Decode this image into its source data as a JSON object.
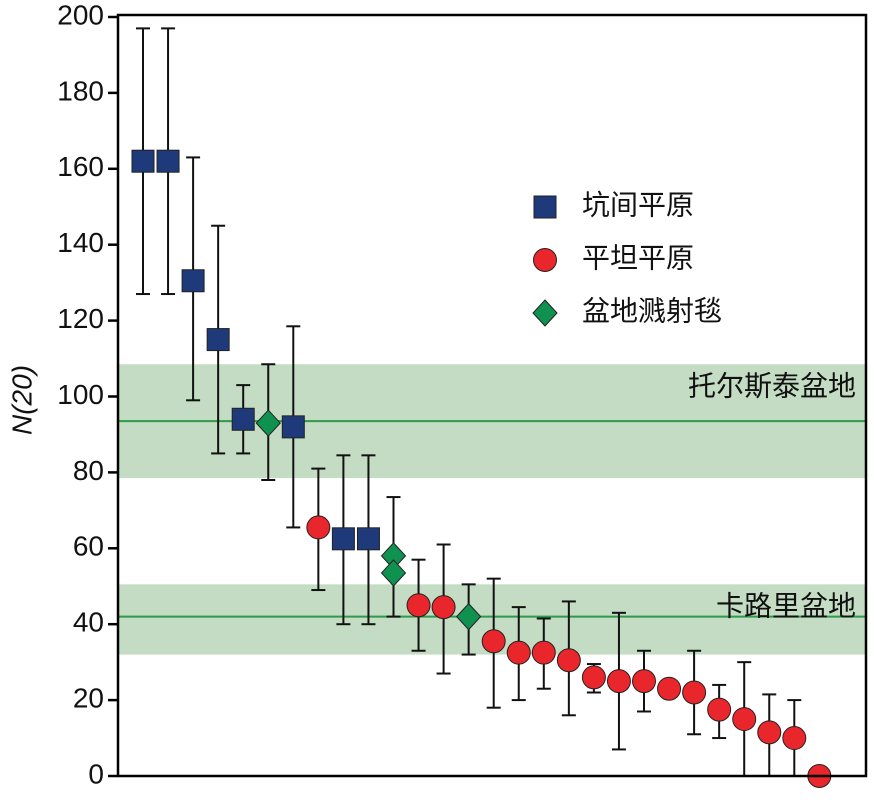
{
  "chart_data": {
    "type": "scatter",
    "y_label": "N(20)",
    "ylim": [
      0,
      200
    ],
    "yticks": [
      0,
      20,
      40,
      60,
      80,
      100,
      120,
      140,
      160,
      180,
      200
    ],
    "categories": [
      null,
      null,
      null,
      null,
      null,
      null,
      null,
      null,
      null,
      null,
      null,
      null,
      null,
      null,
      null,
      null,
      null,
      null,
      null,
      null,
      null,
      null,
      null,
      null,
      null,
      null,
      null,
      null
    ],
    "bands": [
      {
        "label": "托尔斯泰盆地",
        "center": 93.5,
        "low": 78.5,
        "high": 108.5
      },
      {
        "label": "卡路里盆地",
        "center": 42,
        "low": 32,
        "high": 50.5
      }
    ],
    "band_color": "#c3dcc3",
    "band_line_color": "#2e9a4a",
    "series": [
      {
        "name": "坑间平原",
        "marker": "square",
        "color": "#1f3a7a",
        "values": [
          162,
          162,
          130.5,
          115,
          94,
          null,
          92,
          null,
          62.5,
          62.5,
          null,
          null,
          null,
          null,
          null,
          null,
          null,
          null,
          null,
          null,
          null,
          null,
          null,
          null,
          null,
          null,
          null,
          null
        ],
        "low": [
          127,
          127,
          99,
          85,
          85,
          null,
          65.5,
          null,
          40,
          40,
          null,
          null,
          null,
          null,
          null,
          null,
          null,
          null,
          null,
          null,
          null,
          null,
          null,
          null,
          null,
          null,
          null,
          null
        ],
        "high": [
          197,
          197,
          163,
          145,
          103,
          null,
          118.5,
          null,
          84.5,
          84.5,
          null,
          null,
          null,
          null,
          null,
          null,
          null,
          null,
          null,
          null,
          null,
          null,
          null,
          null,
          null,
          null,
          null,
          null
        ]
      },
      {
        "name": "平坦平原",
        "marker": "circle",
        "color": "#e8262b",
        "values": [
          null,
          null,
          null,
          null,
          null,
          null,
          null,
          65.5,
          null,
          null,
          null,
          45,
          44.5,
          null,
          35.5,
          32.5,
          32.5,
          30.5,
          26,
          25,
          25,
          23,
          22,
          17.5,
          15,
          11.5,
          10,
          0
        ],
        "low": [
          null,
          null,
          null,
          null,
          null,
          null,
          null,
          49,
          null,
          null,
          null,
          33,
          27,
          null,
          18,
          20,
          23,
          16,
          22,
          7,
          17,
          null,
          11,
          10,
          0,
          0,
          0,
          null
        ],
        "high": [
          null,
          null,
          null,
          null,
          null,
          null,
          null,
          81,
          null,
          null,
          null,
          57,
          61,
          null,
          52,
          44.5,
          41.5,
          46,
          29.5,
          43,
          33,
          null,
          33,
          24,
          30,
          21.5,
          20,
          null
        ]
      },
      {
        "name": "盆地溅射毯",
        "marker": "diamond",
        "color": "#0f9150",
        "values": [
          null,
          null,
          null,
          null,
          null,
          93,
          null,
          null,
          null,
          null,
          58,
          null,
          null,
          42,
          null,
          null,
          null,
          null,
          null,
          null,
          null,
          null,
          null,
          null,
          null,
          null,
          null,
          null
        ],
        "low": [
          null,
          null,
          null,
          null,
          null,
          78,
          null,
          null,
          null,
          null,
          42,
          null,
          null,
          32,
          null,
          null,
          null,
          null,
          null,
          null,
          null,
          null,
          null,
          null,
          null,
          null,
          null,
          null
        ],
        "high": [
          null,
          null,
          null,
          null,
          null,
          108.5,
          null,
          null,
          null,
          null,
          73.5,
          null,
          null,
          50.5,
          null,
          null,
          null,
          null,
          null,
          null,
          null,
          null,
          null,
          null,
          null,
          null,
          null,
          null
        ]
      },
      {
        "marker": "diamond",
        "color": "#0f9150",
        "values": [
          null,
          null,
          null,
          null,
          null,
          null,
          null,
          null,
          null,
          null,
          53.5,
          null,
          null,
          null,
          null,
          null,
          null,
          null,
          null,
          null,
          null,
          null,
          null,
          null,
          null,
          null,
          null,
          null
        ]
      }
    ]
  }
}
